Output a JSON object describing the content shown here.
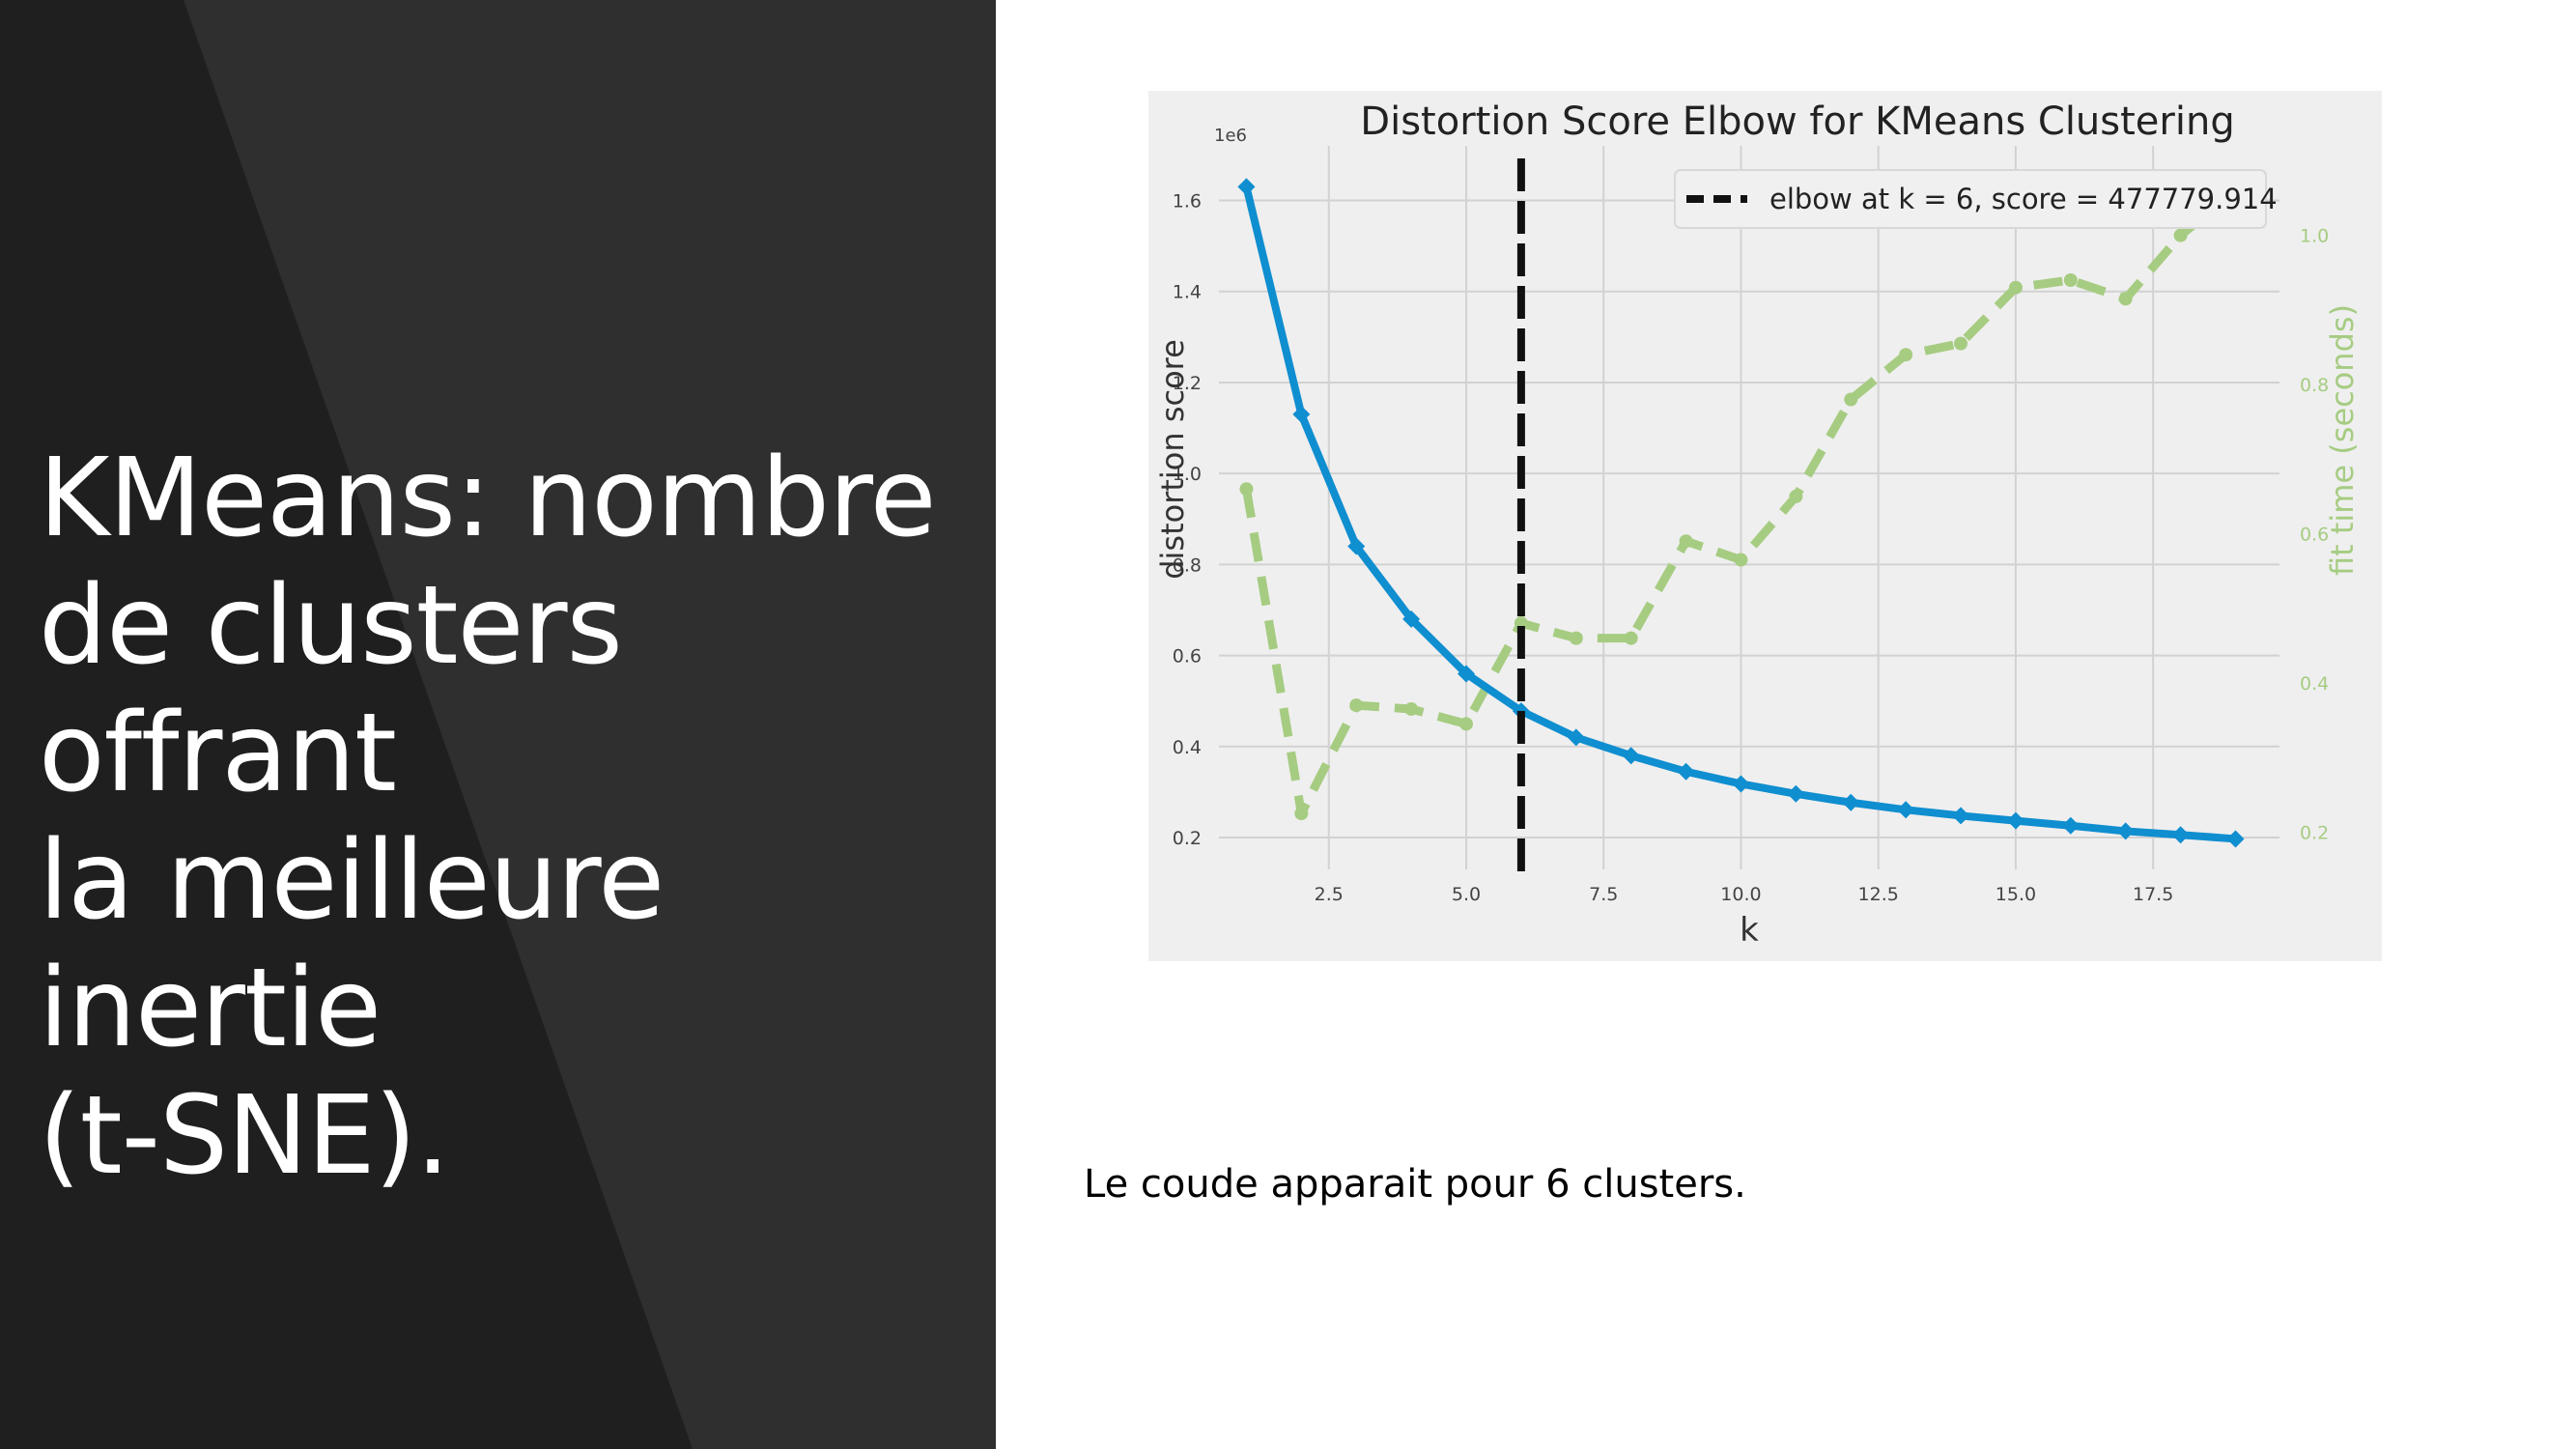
{
  "slide": {
    "title": "KMeans:  nombre\nde clusters offrant\nla meilleure inertie\n(t-SNE).",
    "caption": "Le coude apparait pour 6 clusters."
  },
  "colors": {
    "left_panel_dark": "#1f1f1f",
    "left_panel_light": "#2f2f2f",
    "distortion": "#0f8ed0",
    "fit_time": "#a6cc82",
    "elbow": "#111111"
  },
  "chart_data": {
    "type": "line",
    "title": "Distortion Score Elbow for KMeans Clustering",
    "xlabel": "k",
    "ylabel": "distortion score",
    "y2label": "fit time (seconds)",
    "y_multiplier_label": "1e6",
    "xlim": [
      0.5,
      19.8
    ],
    "ylim": [
      0.13,
      1.72
    ],
    "y2lim": [
      0.15,
      1.12
    ],
    "x_ticks": [
      2.5,
      5.0,
      7.5,
      10.0,
      12.5,
      15.0,
      17.5
    ],
    "x_tick_labels": [
      "2.5",
      "5.0",
      "7.5",
      "10.0",
      "12.5",
      "15.0",
      "17.5"
    ],
    "y_ticks": [
      0.2,
      0.4,
      0.6,
      0.8,
      1.0,
      1.2,
      1.4,
      1.6
    ],
    "y_tick_labels": [
      "0.2",
      "0.4",
      "0.6",
      "0.8",
      "1.0",
      "1.2",
      "1.4",
      "1.6"
    ],
    "y2_ticks": [
      0.2,
      0.4,
      0.6,
      0.8,
      1.0
    ],
    "y2_tick_labels": [
      "0.2",
      "0.4",
      "0.6",
      "0.8",
      "1.0"
    ],
    "grid": true,
    "legend_position": "top-right",
    "legend_label": "elbow at k = 6, score = 477779.914",
    "elbow_k": 6,
    "series": [
      {
        "name": "distortion score",
        "axis": "left",
        "x": [
          1,
          2,
          3,
          4,
          5,
          6,
          7,
          8,
          9,
          10,
          11,
          12,
          13,
          14,
          15,
          16,
          17,
          18,
          19
        ],
        "values": [
          1.63,
          1.13,
          0.84,
          0.68,
          0.56,
          0.478,
          0.42,
          0.38,
          0.345,
          0.318,
          0.296,
          0.277,
          0.261,
          0.248,
          0.237,
          0.226,
          0.214,
          0.206,
          0.197
        ]
      },
      {
        "name": "fit time",
        "axis": "right",
        "x": [
          1,
          2,
          3,
          4,
          5,
          6,
          7,
          8,
          9,
          10,
          11,
          12,
          13,
          14,
          15,
          16,
          17,
          18,
          19
        ],
        "values": [
          0.66,
          0.225,
          0.37,
          0.365,
          0.345,
          0.48,
          0.46,
          0.46,
          0.59,
          0.565,
          0.65,
          0.78,
          0.84,
          0.855,
          0.93,
          0.94,
          0.915,
          1.0,
          1.06
        ]
      }
    ]
  }
}
